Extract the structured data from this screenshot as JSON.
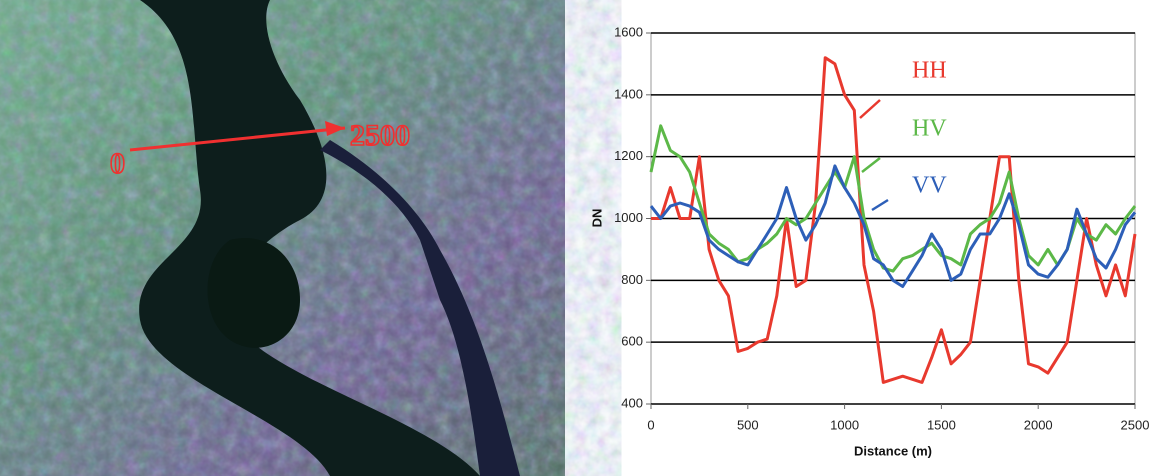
{
  "image": {
    "start_label": "0",
    "end_label": "2500"
  },
  "chart_data": {
    "type": "line",
    "xlabel": "Distance (m)",
    "ylabel": "DN",
    "x": [
      0,
      50,
      100,
      150,
      200,
      250,
      300,
      350,
      400,
      450,
      500,
      550,
      600,
      650,
      700,
      750,
      800,
      850,
      900,
      950,
      1000,
      1050,
      1100,
      1150,
      1200,
      1250,
      1300,
      1350,
      1400,
      1450,
      1500,
      1550,
      1600,
      1650,
      1700,
      1750,
      1800,
      1850,
      1900,
      1950,
      2000,
      2050,
      2100,
      2150,
      2200,
      2250,
      2300,
      2350,
      2400,
      2450,
      2500
    ],
    "series": [
      {
        "name": "HH",
        "color": "#e8392e",
        "values": [
          1000,
          1000,
          1100,
          1000,
          1000,
          1200,
          900,
          800,
          750,
          570,
          580,
          600,
          610,
          750,
          1000,
          780,
          800,
          1050,
          1520,
          1500,
          1400,
          1350,
          850,
          700,
          470,
          480,
          490,
          480,
          470,
          550,
          640,
          530,
          560,
          600,
          800,
          1000,
          1200,
          1200,
          800,
          530,
          520,
          500,
          550,
          600,
          800,
          1000,
          850,
          750,
          850,
          750,
          950
        ]
      },
      {
        "name": "HV",
        "color": "#5cb848",
        "values": [
          1150,
          1300,
          1220,
          1200,
          1150,
          1050,
          950,
          920,
          900,
          860,
          870,
          900,
          920,
          950,
          1000,
          980,
          1000,
          1050,
          1100,
          1150,
          1100,
          1200,
          1000,
          900,
          840,
          830,
          870,
          880,
          900,
          920,
          880,
          870,
          850,
          950,
          980,
          1000,
          1050,
          1150,
          1000,
          880,
          850,
          900,
          850,
          900,
          1000,
          950,
          930,
          980,
          950,
          1000,
          1040
        ]
      },
      {
        "name": "VV",
        "color": "#2d5fb8",
        "values": [
          1040,
          1000,
          1040,
          1050,
          1040,
          1020,
          930,
          900,
          880,
          860,
          850,
          900,
          950,
          1000,
          1100,
          1000,
          930,
          980,
          1050,
          1170,
          1100,
          1050,
          980,
          870,
          850,
          800,
          780,
          830,
          880,
          950,
          900,
          800,
          820,
          900,
          950,
          950,
          1000,
          1080,
          980,
          850,
          820,
          810,
          850,
          900,
          1030,
          950,
          870,
          840,
          900,
          980,
          1020
        ]
      }
    ],
    "xlim": [
      0,
      2500
    ],
    "ylim": [
      400,
      1600
    ],
    "xticks": [
      0,
      500,
      1000,
      1500,
      2000,
      2500
    ],
    "yticks": [
      400,
      600,
      800,
      1000,
      1200,
      1400,
      1600
    ],
    "grid": true
  }
}
